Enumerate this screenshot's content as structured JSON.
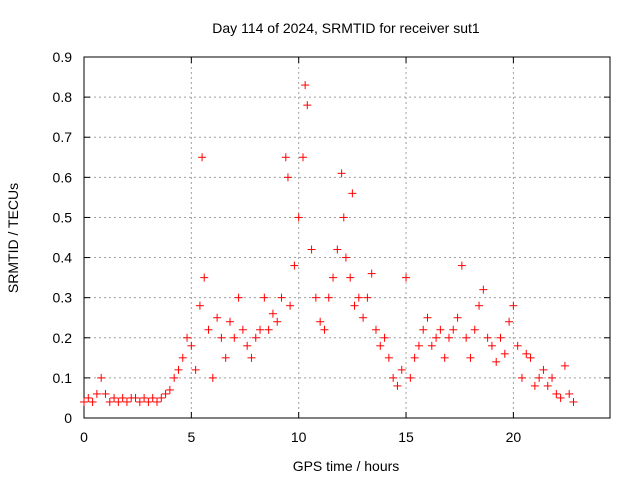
{
  "chart_data": {
    "type": "scatter",
    "title": "Day 114 of 2024, SRMTID for receiver sut1",
    "xlabel": "GPS time / hours",
    "ylabel": "SRMTID / TECUs",
    "xlim": [
      0,
      24.5
    ],
    "ylim": [
      0,
      0.9
    ],
    "xticks": [
      "0",
      "5",
      "10",
      "15",
      "20"
    ],
    "xtick_values": [
      0,
      5,
      10,
      15,
      20
    ],
    "yticks": [
      "0",
      "0.1",
      "0.2",
      "0.3",
      "0.4",
      "0.5",
      "0.6",
      "0.7",
      "0.8",
      "0.9"
    ],
    "ytick_values": [
      0,
      0.1,
      0.2,
      0.3,
      0.4,
      0.5,
      0.6,
      0.7,
      0.8,
      0.9
    ],
    "grid": true,
    "marker": "+",
    "color": "#ff0000",
    "series": [
      {
        "name": "sut1",
        "x": [
          0.0,
          0.2,
          0.4,
          0.6,
          0.8,
          1.0,
          1.2,
          1.4,
          1.6,
          1.8,
          2.0,
          2.2,
          2.4,
          2.6,
          2.8,
          3.0,
          3.2,
          3.4,
          3.6,
          3.8,
          4.0,
          4.2,
          4.4,
          4.6,
          4.8,
          5.0,
          5.2,
          5.4,
          5.5,
          5.6,
          5.8,
          6.0,
          6.2,
          6.4,
          6.6,
          6.8,
          7.0,
          7.2,
          7.4,
          7.6,
          7.8,
          8.0,
          8.2,
          8.4,
          8.6,
          8.8,
          9.0,
          9.2,
          9.4,
          9.5,
          9.6,
          9.8,
          10.0,
          10.2,
          10.3,
          10.4,
          10.6,
          10.8,
          11.0,
          11.2,
          11.4,
          11.6,
          11.8,
          12.0,
          12.1,
          12.2,
          12.4,
          12.5,
          12.6,
          12.8,
          13.0,
          13.2,
          13.4,
          13.6,
          13.8,
          14.0,
          14.2,
          14.4,
          14.6,
          14.8,
          15.0,
          15.2,
          15.4,
          15.6,
          15.8,
          16.0,
          16.2,
          16.4,
          16.6,
          16.8,
          17.0,
          17.2,
          17.4,
          17.6,
          17.8,
          18.0,
          18.2,
          18.4,
          18.6,
          18.8,
          19.0,
          19.2,
          19.4,
          19.6,
          19.8,
          20.0,
          20.2,
          20.4,
          20.6,
          20.8,
          21.0,
          21.2,
          21.4,
          21.6,
          21.8,
          22.0,
          22.2,
          22.4,
          22.6,
          22.8
        ],
        "values": [
          0.04,
          0.05,
          0.04,
          0.06,
          0.1,
          0.06,
          0.04,
          0.05,
          0.04,
          0.05,
          0.04,
          0.05,
          0.05,
          0.04,
          0.05,
          0.04,
          0.05,
          0.04,
          0.05,
          0.06,
          0.07,
          0.1,
          0.12,
          0.15,
          0.2,
          0.18,
          0.12,
          0.28,
          0.65,
          0.35,
          0.22,
          0.1,
          0.25,
          0.2,
          0.15,
          0.24,
          0.2,
          0.3,
          0.22,
          0.18,
          0.15,
          0.2,
          0.22,
          0.3,
          0.22,
          0.26,
          0.24,
          0.3,
          0.65,
          0.6,
          0.28,
          0.38,
          0.5,
          0.65,
          0.83,
          0.78,
          0.42,
          0.3,
          0.24,
          0.22,
          0.3,
          0.35,
          0.42,
          0.61,
          0.5,
          0.4,
          0.35,
          0.56,
          0.28,
          0.3,
          0.25,
          0.3,
          0.36,
          0.22,
          0.18,
          0.2,
          0.15,
          0.1,
          0.08,
          0.12,
          0.35,
          0.1,
          0.15,
          0.18,
          0.22,
          0.25,
          0.18,
          0.2,
          0.22,
          0.15,
          0.2,
          0.22,
          0.25,
          0.38,
          0.2,
          0.15,
          0.22,
          0.28,
          0.32,
          0.2,
          0.18,
          0.14,
          0.2,
          0.16,
          0.24,
          0.28,
          0.18,
          0.1,
          0.16,
          0.15,
          0.08,
          0.1,
          0.12,
          0.08,
          0.1,
          0.06,
          0.05,
          0.13,
          0.06,
          0.04
        ]
      }
    ]
  }
}
